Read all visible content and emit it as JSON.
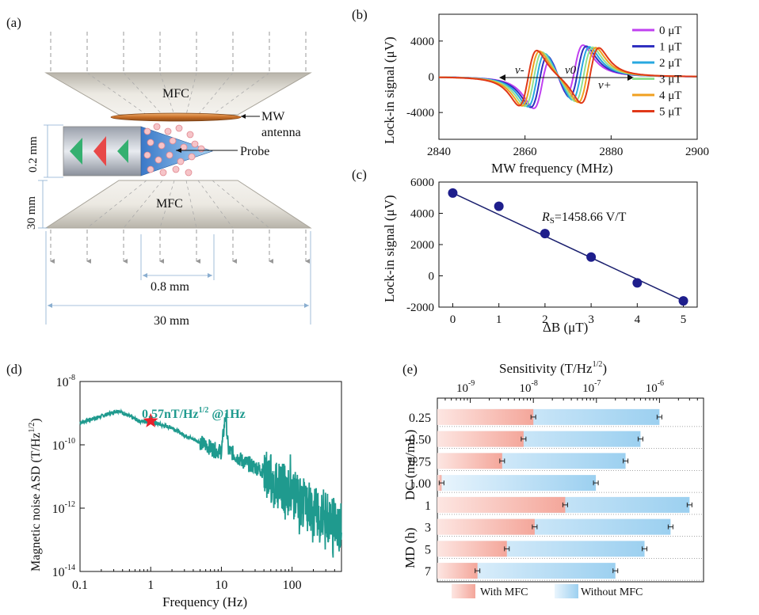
{
  "panel_labels": [
    "(a)",
    "(b)",
    "(c)",
    "(d)",
    "(e)"
  ],
  "panel_a": {
    "mfc_top": "MFC",
    "mfc_bottom": "MFC",
    "mw_label_1": "MW",
    "mw_label_2": "antenna",
    "probe": "Probe",
    "dim_02": "0.2 mm",
    "dim_30_side": "30 mm",
    "dim_08": "0.8 mm",
    "dim_30_bottom": "30 mm"
  },
  "chart_data": [
    {
      "id": "b",
      "type": "line",
      "xlabel": "MW frequency (MHz)",
      "ylabel": "Lock-in signal (μV)",
      "xlim": [
        2840,
        2900
      ],
      "ylim": [
        -7000,
        7000
      ],
      "xticks": [
        2840,
        2860,
        2880,
        2900
      ],
      "yticks": [
        4000,
        0,
        -4000
      ],
      "legend": "right",
      "annotations": [
        "ν-",
        "ν0",
        "ν+"
      ],
      "series": [
        {
          "name": "0 μT",
          "color": "#c040f0",
          "shift": 0
        },
        {
          "name": "1 μT",
          "color": "#3030c0",
          "shift": 1.2
        },
        {
          "name": "2 μT",
          "color": "#28a8e0",
          "shift": 2.4
        },
        {
          "name": "3 μT",
          "color": "#90e090",
          "shift": 3.6
        },
        {
          "name": "4 μT",
          "color": "#f0a020",
          "shift": 4.8
        },
        {
          "name": "5 μT",
          "color": "#e03818",
          "shift": 6.0
        }
      ],
      "model": {
        "center_low": 2864.0,
        "center_high": 2871.5,
        "amp": 6200,
        "width": 3.6
      }
    },
    {
      "id": "c",
      "type": "scatter",
      "xlabel": "ΔB (μT)",
      "ylabel": "Lock-in signal (μV)",
      "xlim": [
        -0.3,
        5.3
      ],
      "ylim": [
        -2000,
        6000
      ],
      "xticks": [
        0,
        1,
        2,
        3,
        4,
        5
      ],
      "yticks": [
        6000,
        4000,
        2000,
        0,
        -2000
      ],
      "x": [
        0,
        1,
        2,
        3,
        4,
        5
      ],
      "y": [
        5300,
        4450,
        2700,
        1200,
        -450,
        -1600
      ],
      "fit": {
        "x": [
          0,
          5
        ],
        "y": [
          5300,
          -1600
        ]
      },
      "annotation": {
        "sym": "R",
        "sub": "S",
        "text": "=1458.66 V/T"
      }
    },
    {
      "id": "d",
      "type": "line",
      "xlabel": "Frequency (Hz)",
      "ylabel": "Magnetic noise ASD (T/Hz",
      "ylabel_sup": "1/2",
      "ylabel_end": ")",
      "xscale": "log",
      "yscale": "log",
      "xlim": [
        0.1,
        500
      ],
      "ylim": [
        1e-14,
        1e-08
      ],
      "xticks": [
        "0.1",
        "1",
        "10",
        "100"
      ],
      "yticks": [
        "10",
        "10",
        "10",
        "10"
      ],
      "ytick_exp": [
        "-8",
        "-10",
        "-12",
        "-14"
      ],
      "color": "#1f9a8e",
      "annotation": {
        "text": "0.57nT/Hz",
        "sup": "1/2",
        "tail": " @1Hz",
        "x": 1,
        "y": 5.7e-10
      },
      "anchors": [
        [
          0.1,
          5e-10
        ],
        [
          0.2,
          8e-10
        ],
        [
          0.35,
          1.2e-09
        ],
        [
          0.5,
          8e-10
        ],
        [
          0.7,
          5.5e-10
        ],
        [
          1,
          5.7e-10
        ],
        [
          1.5,
          4e-10
        ],
        [
          2,
          3.5e-10
        ],
        [
          3,
          2e-10
        ],
        [
          5,
          1.2e-10
        ],
        [
          8,
          7e-11
        ],
        [
          10,
          6e-11
        ],
        [
          11.5,
          1e-09
        ],
        [
          12.5,
          7e-11
        ],
        [
          20,
          3e-11
        ],
        [
          40,
          1.5e-11
        ],
        [
          60,
          6e-12
        ],
        [
          100,
          3e-12
        ],
        [
          200,
          8e-13
        ],
        [
          300,
          5e-13
        ],
        [
          500,
          3e-13
        ]
      ]
    },
    {
      "id": "e",
      "type": "bar",
      "orientation": "horizontal",
      "xlabel": "Sensitivity (T/Hz",
      "xlabel_sup": "1/2",
      "xlabel_end": ")",
      "xscale": "log",
      "xlim": [
        3e-10,
        5e-06
      ],
      "xticks": [
        "10",
        "10",
        "10",
        "10"
      ],
      "xtick_exp": [
        "-9",
        "-8",
        "-7",
        "-6"
      ],
      "group_labels": [
        "DC (mg/mL)",
        "MD (h)"
      ],
      "categories": [
        "0.25",
        "0.50",
        "0.75",
        "1.00",
        "1",
        "3",
        "5",
        "7"
      ],
      "series": [
        {
          "name": "With MFC",
          "color": "#f4a69a",
          "values": [
            1e-08,
            7e-09,
            3.2e-09,
            3.5e-10,
            3.2e-08,
            1.05e-08,
            3.8e-09,
            1.3e-09
          ]
        },
        {
          "name": "Without MFC",
          "color": "#9cd0f0",
          "values": [
            1e-06,
            5e-07,
            2.9e-07,
            9.8e-08,
            3e-06,
            1.5e-06,
            5.8e-07,
            2e-07
          ]
        }
      ],
      "legend": "bottom"
    }
  ]
}
